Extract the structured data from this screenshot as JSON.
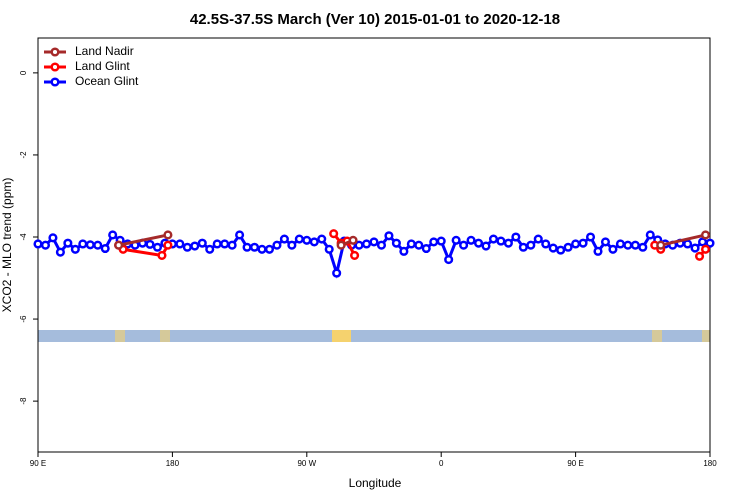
{
  "chart_data": {
    "type": "line",
    "title": "42.5S-37.5S March (Ver 10)   2015-01-01 to 2020-12-18",
    "x_label": "Longitude",
    "y_label": "XCO2 - MLO trend (ppm)",
    "xlim": [
      90,
      540
    ],
    "ylim": [
      -9.24,
      0.85
    ],
    "xticks": [
      {
        "value": 90,
        "label": "90 E"
      },
      {
        "value": 180,
        "label": "180"
      },
      {
        "value": 270,
        "label": "90 W"
      },
      {
        "value": 360,
        "label": "0"
      },
      {
        "value": 450,
        "label": "90 E"
      },
      {
        "value": 540,
        "label": "180"
      }
    ],
    "yticks": [
      -8,
      -6,
      -4,
      -2,
      0
    ],
    "legend": "top-left",
    "series": [
      {
        "name": "Land Nadir",
        "color": "#a52a2a",
        "x": [
          144,
          177,
          null,
          293,
          301,
          null,
          507,
          537
        ],
        "values": [
          -4.2,
          -3.95,
          null,
          -4.2,
          -4.08,
          null,
          -4.2,
          -3.95
        ]
      },
      {
        "name": "Land Glint",
        "color": "#ff0000",
        "x": [
          144,
          147,
          173,
          177,
          null,
          288,
          293,
          297,
          302,
          null,
          503,
          507,
          null,
          533,
          537
        ],
        "values": [
          -4.2,
          -4.3,
          -4.45,
          -4.2,
          null,
          -3.92,
          -4.15,
          -4.1,
          -4.45,
          null,
          -4.2,
          -4.3,
          null,
          -4.47,
          -4.3
        ]
      },
      {
        "name": "Ocean Glint",
        "color": "#0000ff",
        "x": [
          90,
          95,
          100,
          105,
          110,
          115,
          120,
          125,
          130,
          135,
          140,
          145,
          150,
          155,
          160,
          165,
          170,
          175,
          180,
          185,
          190,
          195,
          200,
          205,
          210,
          215,
          220,
          225,
          230,
          235,
          240,
          245,
          250,
          255,
          260,
          265,
          270,
          275,
          280,
          285,
          290,
          295,
          300,
          305,
          310,
          315,
          320,
          325,
          330,
          335,
          340,
          345,
          350,
          355,
          360,
          365,
          370,
          375,
          380,
          385,
          390,
          395,
          400,
          405,
          410,
          415,
          420,
          425,
          430,
          435,
          440,
          445,
          450,
          455,
          460,
          465,
          470,
          475,
          480,
          485,
          490,
          495,
          500,
          505,
          510,
          515,
          520,
          525,
          530,
          535,
          540
        ],
        "values": [
          -4.17,
          -4.2,
          -4.02,
          -4.37,
          -4.15,
          -4.3,
          -4.17,
          -4.19,
          -4.2,
          -4.28,
          -3.95,
          -4.08,
          -4.17,
          -4.2,
          -4.15,
          -4.18,
          -4.25,
          -4.15,
          -4.17,
          -4.17,
          -4.25,
          -4.22,
          -4.15,
          -4.3,
          -4.17,
          -4.17,
          -4.2,
          -3.95,
          -4.25,
          -4.25,
          -4.3,
          -4.3,
          -4.2,
          -4.05,
          -4.2,
          -4.05,
          -4.08,
          -4.12,
          -4.05,
          -4.3,
          -4.88,
          -4.1,
          -4.2,
          -4.2,
          -4.17,
          -4.12,
          -4.2,
          -3.97,
          -4.15,
          -4.35,
          -4.17,
          -4.2,
          -4.28,
          -4.12,
          -4.1,
          -4.55,
          -4.08,
          -4.2,
          -4.08,
          -4.15,
          -4.22,
          -4.05,
          -4.1,
          -4.15,
          -4.0,
          -4.25,
          -4.2,
          -4.05,
          -4.17,
          -4.27,
          -4.32,
          -4.25,
          -4.17,
          -4.15,
          -4.0,
          -4.35,
          -4.12,
          -4.3,
          -4.17,
          -4.2,
          -4.2,
          -4.25,
          -3.95,
          -4.07,
          -4.17,
          -4.2,
          -4.15,
          -4.17,
          -4.27,
          -4.12,
          -4.15
        ]
      }
    ]
  }
}
